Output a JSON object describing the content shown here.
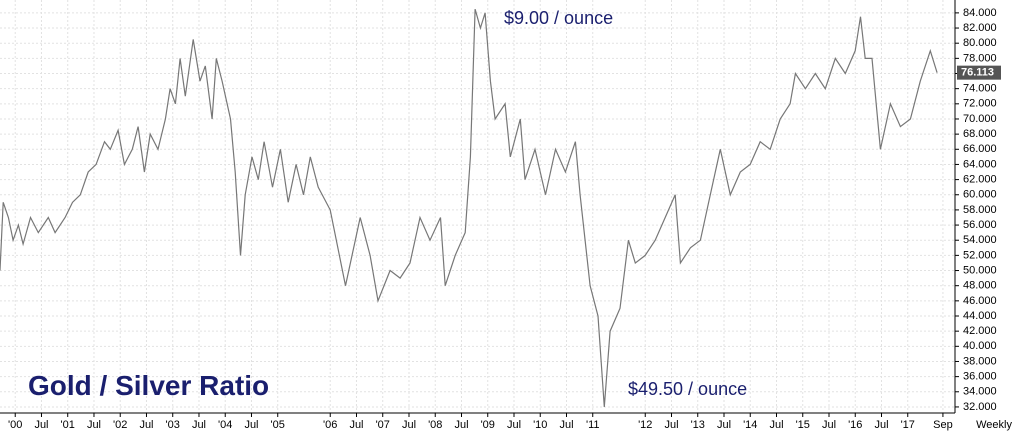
{
  "chart_data": {
    "type": "line",
    "title": "Gold / Silver Ratio",
    "frequency_label": "Weekly",
    "annotations": [
      "$9.00 / ounce",
      "$49.50 / ounce"
    ],
    "xlim": [
      1999.71,
      2017.9
    ],
    "ylim": [
      31.2,
      85.7
    ],
    "grid": true,
    "xticks": [
      {
        "value": 2000,
        "label": "'00"
      },
      {
        "value": 2000.5,
        "label": "Jul"
      },
      {
        "value": 2001,
        "label": "'01"
      },
      {
        "value": 2001.5,
        "label": "Jul"
      },
      {
        "value": 2002,
        "label": "'02"
      },
      {
        "value": 2002.5,
        "label": "Jul"
      },
      {
        "value": 2003,
        "label": "'03"
      },
      {
        "value": 2003.5,
        "label": "Jul"
      },
      {
        "value": 2004,
        "label": "'04"
      },
      {
        "value": 2004.5,
        "label": "Jul"
      },
      {
        "value": 2005,
        "label": "'05"
      },
      {
        "value": 2006,
        "label": "'06"
      },
      {
        "value": 2006.5,
        "label": "Jul"
      },
      {
        "value": 2007,
        "label": "'07"
      },
      {
        "value": 2007.5,
        "label": "Jul"
      },
      {
        "value": 2008,
        "label": "'08"
      },
      {
        "value": 2008.5,
        "label": "Jul"
      },
      {
        "value": 2009,
        "label": "'09"
      },
      {
        "value": 2009.5,
        "label": "Jul"
      },
      {
        "value": 2010,
        "label": "'10"
      },
      {
        "value": 2010.5,
        "label": "Jul"
      },
      {
        "value": 2011,
        "label": "'11"
      },
      {
        "value": 2012,
        "label": "'12"
      },
      {
        "value": 2012.5,
        "label": "Jul"
      },
      {
        "value": 2013,
        "label": "'13"
      },
      {
        "value": 2013.5,
        "label": "Jul"
      },
      {
        "value": 2014,
        "label": "'14"
      },
      {
        "value": 2014.5,
        "label": "Jul"
      },
      {
        "value": 2015,
        "label": "'15"
      },
      {
        "value": 2015.5,
        "label": "Jul"
      },
      {
        "value": 2016,
        "label": "'16"
      },
      {
        "value": 2016.5,
        "label": "Jul"
      },
      {
        "value": 2017,
        "label": "'17"
      },
      {
        "value": 2017.67,
        "label": "Sep"
      }
    ],
    "yticks": [
      {
        "value": 32,
        "label": "32.000"
      },
      {
        "value": 34,
        "label": "34.000"
      },
      {
        "value": 36,
        "label": "36.000"
      },
      {
        "value": 38,
        "label": "38.000"
      },
      {
        "value": 40,
        "label": "40.000"
      },
      {
        "value": 42,
        "label": "42.000"
      },
      {
        "value": 44,
        "label": "44.000"
      },
      {
        "value": 46,
        "label": "46.000"
      },
      {
        "value": 48,
        "label": "48.000"
      },
      {
        "value": 50,
        "label": "50.000"
      },
      {
        "value": 52,
        "label": "52.000"
      },
      {
        "value": 54,
        "label": "54.000"
      },
      {
        "value": 56,
        "label": "56.000"
      },
      {
        "value": 58,
        "label": "58.000"
      },
      {
        "value": 60,
        "label": "60.000"
      },
      {
        "value": 62,
        "label": "62.000"
      },
      {
        "value": 64,
        "label": "64.000"
      },
      {
        "value": 66,
        "label": "66.000"
      },
      {
        "value": 68,
        "label": "68.000"
      },
      {
        "value": 70,
        "label": "70.000"
      },
      {
        "value": 72,
        "label": "72.000"
      },
      {
        "value": 74,
        "label": "74.000"
      },
      {
        "value": 76,
        "label": "76.000"
      },
      {
        "value": 78,
        "label": "78.000"
      },
      {
        "value": 80,
        "label": "80.000"
      },
      {
        "value": 82,
        "label": "82.000"
      },
      {
        "value": 84,
        "label": "84.000"
      }
    ],
    "series": [
      {
        "color": "#777777",
        "x": [
          1999.71,
          1999.77,
          1999.87,
          1999.96,
          2000.06,
          2000.15,
          2000.29,
          2000.44,
          2000.63,
          2000.76,
          2000.95,
          2001.09,
          2001.24,
          2001.39,
          2001.54,
          2001.7,
          2001.81,
          2001.96,
          2002.08,
          2002.23,
          2002.34,
          2002.46,
          2002.57,
          2002.72,
          2002.86,
          2002.95,
          2003.05,
          2003.14,
          2003.24,
          2003.39,
          2003.52,
          2003.62,
          2003.75,
          2003.83,
          2003.94,
          2004.1,
          2004.19,
          2004.29,
          2004.38,
          2004.51,
          2004.63,
          2004.74,
          2004.9,
          2005.05,
          2005.2,
          2005.35,
          2005.49,
          2005.62,
          2005.77,
          2006.0,
          2006.29,
          2006.57,
          2006.76,
          2006.91,
          2007.14,
          2007.33,
          2007.52,
          2007.71,
          2007.9,
          2008.1,
          2008.19,
          2008.38,
          2008.57,
          2008.67,
          2008.76,
          2008.86,
          2008.95,
          2009.05,
          2009.14,
          2009.33,
          2009.43,
          2009.62,
          2009.71,
          2009.9,
          2010.1,
          2010.29,
          2010.48,
          2010.67,
          2010.76,
          2010.95,
          2011.1,
          2011.22,
          2011.33,
          2011.52,
          2011.68,
          2011.81,
          2012.0,
          2012.19,
          2012.38,
          2012.57,
          2012.67,
          2012.86,
          2013.05,
          2013.24,
          2013.43,
          2013.62,
          2013.81,
          2014.0,
          2014.19,
          2014.38,
          2014.57,
          2014.76,
          2014.86,
          2015.05,
          2015.24,
          2015.43,
          2015.62,
          2015.81,
          2016.0,
          2016.1,
          2016.19,
          2016.32,
          2016.48,
          2016.67,
          2016.86,
          2017.05,
          2017.24,
          2017.43,
          2017.56
        ],
        "values": [
          50,
          59,
          57,
          54,
          56,
          53.5,
          57,
          55,
          57,
          55,
          57,
          59,
          60,
          63,
          64,
          67,
          66,
          68.5,
          64,
          66,
          69,
          63,
          68,
          66,
          70,
          74,
          72,
          78,
          73,
          80.5,
          75,
          77,
          70,
          78,
          75,
          70,
          63,
          52,
          60,
          65,
          62,
          67,
          61,
          66,
          59,
          64,
          60,
          65,
          61,
          58,
          48,
          57,
          52,
          46,
          50,
          49,
          51,
          57,
          54,
          57,
          48,
          52,
          55,
          65,
          84.5,
          82,
          84,
          75,
          70,
          72,
          65,
          70,
          62,
          66,
          60,
          66,
          63,
          67,
          60,
          48,
          44,
          32,
          42,
          45,
          54,
          51,
          52,
          54,
          57,
          60,
          51,
          53,
          54,
          60,
          66,
          60,
          63,
          64,
          67,
          66,
          70,
          72,
          76,
          74,
          76,
          74,
          78,
          76,
          79,
          83.5,
          78,
          78,
          66,
          72,
          69,
          70,
          75,
          79,
          76.113
        ]
      }
    ]
  }
}
